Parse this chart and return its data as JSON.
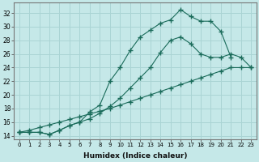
{
  "xlabel": "Humidex (Indice chaleur)",
  "ylabel": "",
  "bg_color": "#c5e8e8",
  "grid_color": "#aad4d4",
  "line_color": "#1a6b5a",
  "xlim": [
    -0.5,
    23.5
  ],
  "ylim": [
    13.5,
    33.5
  ],
  "yticks": [
    14,
    16,
    18,
    20,
    22,
    24,
    26,
    28,
    30,
    32
  ],
  "xticks": [
    0,
    1,
    2,
    3,
    4,
    5,
    6,
    7,
    8,
    9,
    10,
    11,
    12,
    13,
    14,
    15,
    16,
    17,
    18,
    19,
    20,
    21,
    22,
    23
  ],
  "line1_x": [
    0,
    1,
    2,
    3,
    4,
    5,
    6,
    7,
    8,
    9,
    10,
    11,
    12,
    13,
    14,
    15,
    16,
    17,
    18,
    19,
    20,
    21,
    22,
    23
  ],
  "line1_y": [
    14.5,
    14.8,
    15.2,
    15.6,
    16.0,
    16.4,
    16.8,
    17.2,
    17.6,
    18.0,
    18.5,
    19.0,
    19.5,
    20.0,
    20.5,
    21.0,
    21.5,
    22.0,
    22.5,
    23.0,
    23.5,
    24.0,
    24.0,
    24.0
  ],
  "line2_x": [
    0,
    1,
    2,
    3,
    4,
    5,
    6,
    7,
    8,
    9,
    10,
    11,
    12,
    13,
    14,
    15,
    16,
    17,
    18,
    19,
    20,
    21,
    22,
    23
  ],
  "line2_y": [
    14.5,
    14.5,
    14.5,
    14.2,
    14.8,
    15.5,
    16.0,
    16.5,
    17.3,
    18.3,
    19.5,
    21.0,
    22.5,
    24.0,
    26.2,
    28.0,
    28.5,
    27.5,
    26.0,
    25.5,
    25.5,
    26.0,
    25.5,
    24.0
  ],
  "line3_x": [
    0,
    1,
    2,
    3,
    4,
    5,
    6,
    7,
    8,
    9,
    10,
    11,
    12,
    13,
    14,
    15,
    16,
    17,
    18,
    19,
    20,
    21,
    22,
    23
  ],
  "line3_y": [
    14.5,
    14.5,
    14.5,
    14.2,
    14.8,
    15.5,
    16.0,
    17.5,
    18.5,
    22.0,
    24.0,
    26.5,
    28.5,
    29.5,
    30.5,
    31.0,
    32.5,
    31.5,
    30.8,
    30.8,
    29.3,
    25.5,
    null,
    null
  ]
}
